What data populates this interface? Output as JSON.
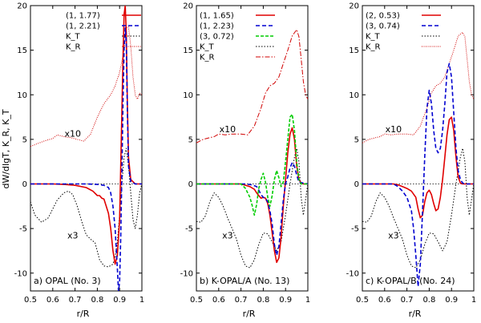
{
  "chart_data": [
    {
      "type": "line",
      "panel_label": "a) OPAL (No. 3)",
      "xlim": [
        0.5,
        1.0
      ],
      "ylim": [
        -12,
        20
      ],
      "xticks": [
        "0.5",
        "0.6",
        "0.7",
        "0.8",
        "0.9",
        "1"
      ],
      "yticks": [
        "-10",
        "-5",
        "0",
        "5",
        "10",
        "15",
        "20"
      ],
      "xlabel": "r/R",
      "ylabel": "dW/dlgT,  K_R,  K_T",
      "annotations": [
        {
          "text": "x10",
          "x": 0.69,
          "y": 5.3
        },
        {
          "text": "x3",
          "x": 0.69,
          "y": -6.1
        }
      ],
      "series": [
        {
          "name": "(1, 1.77)",
          "color": "#e00000",
          "style": "solid",
          "x": [
            0.5,
            0.6,
            0.65,
            0.7,
            0.75,
            0.78,
            0.8,
            0.81,
            0.82,
            0.83,
            0.84,
            0.85,
            0.86,
            0.87,
            0.88,
            0.89,
            0.9,
            0.905,
            0.91,
            0.915,
            0.92,
            0.925,
            0.93,
            0.935,
            0.94,
            0.95,
            0.97,
            1.0
          ],
          "y": [
            0,
            0,
            -0.05,
            -0.15,
            -0.4,
            -0.8,
            -1.3,
            -1.3,
            -1.6,
            -1.7,
            -2.5,
            -3.3,
            -5.0,
            -7.5,
            -9.0,
            -8.0,
            -4.0,
            2.0,
            8.0,
            14.0,
            19.0,
            20.0,
            17.0,
            9.0,
            3.0,
            0.5,
            0,
            0
          ]
        },
        {
          "name": "(1, 2.21)",
          "color": "#0000d0",
          "style": "dashed",
          "x": [
            0.5,
            0.75,
            0.8,
            0.83,
            0.85,
            0.86,
            0.87,
            0.88,
            0.89,
            0.895,
            0.9,
            0.905,
            0.91,
            0.915,
            0.92,
            0.925,
            0.93,
            0.935,
            0.94,
            0.95,
            0.97,
            1.0
          ],
          "y": [
            0,
            0,
            -0.05,
            -0.15,
            -0.4,
            -1.0,
            -2.5,
            -5.0,
            -9.5,
            -12.0,
            -11.0,
            -6.0,
            1.0,
            9.0,
            15.0,
            17.5,
            16.0,
            8.0,
            2.0,
            0.3,
            0,
            0
          ]
        },
        {
          "name": "K_T",
          "color": "#000000",
          "style": "dotted",
          "x": [
            0.5,
            0.52,
            0.55,
            0.58,
            0.6,
            0.62,
            0.65,
            0.67,
            0.69,
            0.71,
            0.73,
            0.75,
            0.77,
            0.79,
            0.81,
            0.83,
            0.85,
            0.87,
            0.88,
            0.89,
            0.9,
            0.91,
            0.92,
            0.93,
            0.94,
            0.95,
            0.96,
            0.97,
            0.98,
            0.99,
            1.0
          ],
          "y": [
            -2.0,
            -3.5,
            -4.3,
            -3.8,
            -2.8,
            -1.8,
            -1.0,
            -0.8,
            -1.2,
            -2.5,
            -4.2,
            -5.7,
            -6.2,
            -6.6,
            -8.5,
            -9.2,
            -9.3,
            -9.0,
            -8.2,
            -6.5,
            -3.5,
            0.0,
            3.0,
            4.0,
            2.0,
            -1.0,
            -4.0,
            -5.0,
            -3.5,
            -1.0,
            0.0
          ]
        },
        {
          "name": "K_R",
          "color": "#d00000",
          "style": "dotted-fine",
          "x": [
            0.5,
            0.53,
            0.56,
            0.6,
            0.62,
            0.65,
            0.68,
            0.71,
            0.74,
            0.77,
            0.8,
            0.83,
            0.86,
            0.88,
            0.9,
            0.92,
            0.93,
            0.94,
            0.95,
            0.96,
            0.97,
            0.98,
            0.99,
            1.0
          ],
          "y": [
            4.2,
            4.5,
            4.8,
            5.1,
            5.5,
            5.3,
            5.2,
            5.0,
            4.8,
            5.6,
            7.5,
            9.0,
            10.0,
            11.0,
            12.5,
            15.0,
            17.5,
            17.6,
            15.5,
            12.0,
            10.0,
            9.5,
            10.2,
            10.0
          ]
        }
      ]
    },
    {
      "type": "line",
      "panel_label": "b) K-OPAL/A (No. 13)",
      "xlim": [
        0.5,
        1.0
      ],
      "ylim": [
        -12,
        20
      ],
      "xticks": [
        "0.5",
        "0.6",
        "0.7",
        "0.8",
        "0.9",
        "1"
      ],
      "yticks": [
        "-10",
        "-5",
        "0",
        "5",
        "10",
        "15",
        "20"
      ],
      "xlabel": "r/R",
      "annotations": [
        {
          "text": "x10",
          "x": 0.64,
          "y": 5.8
        },
        {
          "text": "x3",
          "x": 0.64,
          "y": -6.1
        }
      ],
      "series": [
        {
          "name": "(1, 1.65)",
          "color": "#e00000",
          "style": "solid",
          "x": [
            0.5,
            0.7,
            0.74,
            0.76,
            0.77,
            0.78,
            0.79,
            0.8,
            0.81,
            0.82,
            0.83,
            0.84,
            0.85,
            0.86,
            0.87,
            0.88,
            0.89,
            0.9,
            0.91,
            0.92,
            0.93,
            0.94,
            0.95,
            0.96,
            0.97,
            0.98,
            1.0
          ],
          "y": [
            0,
            0,
            -0.3,
            -0.6,
            -1.0,
            -1.3,
            -1.6,
            -1.5,
            -1.6,
            -2.2,
            -3.5,
            -5.5,
            -7.5,
            -8.8,
            -8.3,
            -6.0,
            -2.5,
            0.5,
            3.5,
            5.6,
            6.3,
            5.0,
            2.0,
            0.5,
            0.1,
            0,
            0
          ]
        },
        {
          "name": "(1, 2.23)",
          "color": "#0000d0",
          "style": "dashed",
          "x": [
            0.5,
            0.72,
            0.75,
            0.77,
            0.78,
            0.79,
            0.8,
            0.81,
            0.82,
            0.83,
            0.84,
            0.85,
            0.86,
            0.87,
            0.88,
            0.89,
            0.9,
            0.91,
            0.92,
            0.93,
            0.94,
            0.95,
            0.96,
            1.0
          ],
          "y": [
            0,
            0,
            -0.1,
            -0.3,
            -0.7,
            -1.2,
            -1.5,
            -1.6,
            -2.0,
            -3.0,
            -4.5,
            -6.8,
            -8.0,
            -7.0,
            -4.5,
            -1.8,
            0.0,
            0.8,
            1.8,
            2.4,
            2.0,
            1.0,
            0.2,
            0
          ]
        },
        {
          "name": "(3, 0.72)",
          "color": "#00cc00",
          "style": "dashed-fine",
          "x": [
            0.5,
            0.7,
            0.72,
            0.74,
            0.75,
            0.76,
            0.77,
            0.78,
            0.79,
            0.8,
            0.81,
            0.82,
            0.83,
            0.84,
            0.85,
            0.86,
            0.87,
            0.88,
            0.89,
            0.9,
            0.91,
            0.92,
            0.93,
            0.94,
            0.95,
            0.96,
            0.97,
            1.0
          ],
          "y": [
            0,
            0,
            -0.5,
            -1.5,
            -2.4,
            -3.5,
            -2.3,
            -0.5,
            0.5,
            1.2,
            0.2,
            -1.5,
            -2.5,
            -1.3,
            0.5,
            1.5,
            0.7,
            -0.3,
            0.2,
            2.5,
            5.0,
            7.5,
            7.8,
            6.0,
            2.5,
            0.5,
            0,
            0
          ]
        },
        {
          "name": "K_T",
          "color": "#000000",
          "style": "dotted",
          "x": [
            0.5,
            0.52,
            0.54,
            0.56,
            0.58,
            0.6,
            0.62,
            0.64,
            0.66,
            0.68,
            0.7,
            0.72,
            0.74,
            0.76,
            0.78,
            0.8,
            0.82,
            0.84,
            0.86,
            0.88,
            0.9,
            0.92,
            0.94,
            0.95,
            0.96,
            0.97,
            0.98,
            1.0
          ],
          "y": [
            -4.2,
            -4.3,
            -3.6,
            -2.0,
            -1.0,
            -1.5,
            -2.5,
            -3.8,
            -5.0,
            -6.2,
            -8.0,
            -9.2,
            -9.4,
            -8.5,
            -6.8,
            -5.5,
            -5.6,
            -6.5,
            -7.5,
            -6.5,
            -3.5,
            0.0,
            3.0,
            4.0,
            2.5,
            -1.5,
            -3.5,
            0.0
          ]
        },
        {
          "name": "K_R",
          "color": "#d00000",
          "style": "dash-dot",
          "x": [
            0.5,
            0.53,
            0.56,
            0.58,
            0.6,
            0.63,
            0.66,
            0.7,
            0.73,
            0.76,
            0.79,
            0.81,
            0.83,
            0.85,
            0.87,
            0.89,
            0.91,
            0.93,
            0.95,
            0.96,
            0.97,
            0.98,
            0.99,
            1.0
          ],
          "y": [
            4.6,
            5.0,
            5.2,
            5.3,
            5.6,
            5.5,
            5.6,
            5.6,
            5.5,
            6.5,
            8.5,
            10.2,
            11.0,
            11.3,
            12.0,
            13.5,
            15.0,
            16.6,
            17.3,
            16.5,
            14.0,
            11.5,
            10.0,
            9.5
          ]
        }
      ]
    },
    {
      "type": "line",
      "panel_label": "c) K-OPAL/B (No. 24)",
      "xlim": [
        0.5,
        1.0
      ],
      "ylim": [
        -12,
        20
      ],
      "xticks": [
        "0.5",
        "0.6",
        "0.7",
        "0.8",
        "0.9",
        "1"
      ],
      "yticks": [
        "-10",
        "-5",
        "0",
        "5",
        "10",
        "15",
        "20"
      ],
      "xlabel": "r/R",
      "annotations": [
        {
          "text": "x10",
          "x": 0.64,
          "y": 5.8
        },
        {
          "text": "x3",
          "x": 0.64,
          "y": -6.1
        }
      ],
      "series": [
        {
          "name": "(2, 0.53)",
          "color": "#e00000",
          "style": "solid",
          "x": [
            0.5,
            0.64,
            0.66,
            0.68,
            0.7,
            0.72,
            0.74,
            0.75,
            0.76,
            0.77,
            0.78,
            0.79,
            0.8,
            0.81,
            0.82,
            0.83,
            0.84,
            0.85,
            0.86,
            0.87,
            0.88,
            0.89,
            0.9,
            0.91,
            0.92,
            0.93,
            0.94,
            0.95,
            0.96,
            1.0
          ],
          "y": [
            0,
            0,
            -0.1,
            -0.3,
            -0.5,
            -0.8,
            -1.5,
            -2.8,
            -3.8,
            -3.5,
            -2.0,
            -1.0,
            -0.7,
            -1.2,
            -2.2,
            -3.0,
            -2.8,
            -1.5,
            0.5,
            3.0,
            5.5,
            7.2,
            7.5,
            6.0,
            3.0,
            0.8,
            0.1,
            0,
            0,
            0
          ]
        },
        {
          "name": "(3, 0.74)",
          "color": "#0000d0",
          "style": "dashed",
          "x": [
            0.5,
            0.64,
            0.66,
            0.68,
            0.7,
            0.72,
            0.73,
            0.74,
            0.75,
            0.76,
            0.77,
            0.78,
            0.79,
            0.8,
            0.81,
            0.82,
            0.83,
            0.84,
            0.85,
            0.86,
            0.87,
            0.88,
            0.89,
            0.9,
            0.91,
            0.92,
            0.93,
            0.94,
            0.95,
            0.96,
            1.0
          ],
          "y": [
            0,
            0,
            -0.3,
            -0.8,
            -1.5,
            -3.0,
            -5.0,
            -8.0,
            -11.5,
            -9.0,
            -3.0,
            3.0,
            8.5,
            10.5,
            9.0,
            6.0,
            4.0,
            3.5,
            4.0,
            6.0,
            9.0,
            12.5,
            13.5,
            12.0,
            8.0,
            4.0,
            1.5,
            0.5,
            0.1,
            0,
            0
          ]
        },
        {
          "name": "K_T",
          "color": "#000000",
          "style": "dotted",
          "x": [
            0.5,
            0.52,
            0.54,
            0.56,
            0.58,
            0.6,
            0.62,
            0.64,
            0.66,
            0.68,
            0.7,
            0.72,
            0.74,
            0.76,
            0.78,
            0.8,
            0.82,
            0.84,
            0.86,
            0.88,
            0.9,
            0.92,
            0.94,
            0.95,
            0.96,
            0.97,
            0.98,
            1.0
          ],
          "y": [
            -4.2,
            -4.3,
            -3.6,
            -2.0,
            -1.0,
            -1.5,
            -2.5,
            -3.8,
            -5.0,
            -6.2,
            -8.0,
            -9.2,
            -9.4,
            -8.5,
            -6.8,
            -5.5,
            -5.6,
            -6.5,
            -7.5,
            -6.5,
            -3.5,
            0.0,
            3.0,
            4.0,
            2.5,
            -1.5,
            -3.5,
            0.0
          ]
        },
        {
          "name": "K_R",
          "color": "#d00000",
          "style": "dotted-fine",
          "x": [
            0.5,
            0.53,
            0.56,
            0.58,
            0.6,
            0.63,
            0.66,
            0.7,
            0.73,
            0.76,
            0.79,
            0.81,
            0.83,
            0.85,
            0.87,
            0.89,
            0.91,
            0.93,
            0.95,
            0.96,
            0.97,
            0.98,
            0.99,
            1.0
          ],
          "y": [
            4.6,
            5.0,
            5.2,
            5.3,
            5.6,
            5.5,
            5.6,
            5.6,
            5.5,
            6.5,
            8.5,
            10.2,
            11.0,
            11.3,
            12.0,
            13.5,
            15.0,
            16.6,
            17.0,
            16.5,
            14.0,
            11.5,
            10.0,
            9.5
          ]
        }
      ]
    }
  ]
}
